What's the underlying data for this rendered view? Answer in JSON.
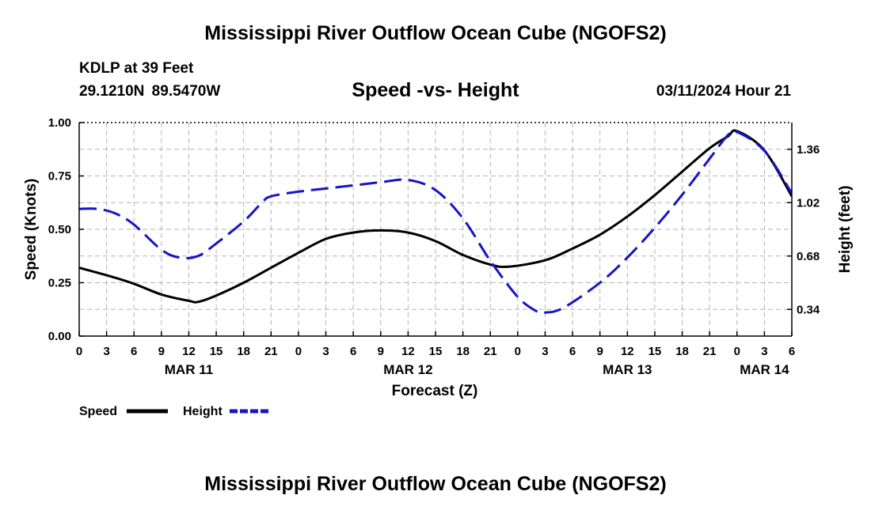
{
  "header": {
    "title": "Mississippi River Outflow Ocean Cube (NGOFS2)",
    "station": "KDLP at 39 Feet",
    "coords": "29.1210N  89.5470W",
    "subtitle": "Speed -vs- Height",
    "datetime": "03/11/2024 Hour 21"
  },
  "footer": {
    "title": "Mississippi River Outflow Ocean Cube (NGOFS2)"
  },
  "colors": {
    "speed": "#000000",
    "height": "#1515c8",
    "grid": "#b4b4b4"
  },
  "chart_data": {
    "type": "line",
    "title": "Speed -vs- Height",
    "xlabel": "Forecast (Z)",
    "ylabel": "Speed (Knots)",
    "y2label": "Height (feet)",
    "x_unit": "hours since 00Z MAR 11",
    "xlim": [
      0,
      78
    ],
    "ylim": [
      0,
      1
    ],
    "y2lim": [
      0.17,
      1.53
    ],
    "x_ticks": [
      0,
      3,
      6,
      9,
      12,
      15,
      18,
      21,
      24,
      27,
      30,
      33,
      36,
      39,
      42,
      45,
      48,
      51,
      54,
      57,
      60,
      63,
      66,
      69,
      72,
      75,
      78
    ],
    "x_tick_labels": [
      "0",
      "3",
      "6",
      "9",
      "12",
      "15",
      "18",
      "21",
      "0",
      "3",
      "6",
      "9",
      "12",
      "15",
      "18",
      "21",
      "0",
      "3",
      "6",
      "9",
      "12",
      "15",
      "18",
      "21",
      "0",
      "3",
      "6"
    ],
    "day_labels": [
      {
        "x": 12,
        "label": "MAR 11"
      },
      {
        "x": 36,
        "label": "MAR 12"
      },
      {
        "x": 60,
        "label": "MAR 13"
      },
      {
        "x": 75,
        "label": "MAR 14"
      }
    ],
    "y_ticks": [
      0,
      0.25,
      0.5,
      0.75,
      1.0
    ],
    "y_tick_labels": [
      "0.00",
      "0.25",
      "0.50",
      "0.75",
      "1.00"
    ],
    "y2_ticks": [
      0.34,
      0.68,
      1.02,
      1.36
    ],
    "y2_tick_labels": [
      "0.34",
      "0.68",
      "1.02",
      "1.36"
    ],
    "legend": "bottom-left",
    "grid": true,
    "series": [
      {
        "name": "Speed",
        "axis": "left",
        "style": "solid",
        "x": [
          0,
          3,
          6,
          9,
          12,
          13,
          15,
          18,
          21,
          24,
          27,
          30,
          33,
          36,
          39,
          42,
          45,
          47,
          51,
          54,
          57,
          60,
          63,
          66,
          69,
          71,
          72,
          75,
          78
        ],
        "y": [
          0.32,
          0.285,
          0.245,
          0.195,
          0.165,
          0.16,
          0.19,
          0.25,
          0.32,
          0.39,
          0.455,
          0.485,
          0.495,
          0.485,
          0.445,
          0.38,
          0.335,
          0.325,
          0.355,
          0.41,
          0.475,
          0.56,
          0.66,
          0.77,
          0.88,
          0.935,
          0.96,
          0.87,
          0.655
        ]
      },
      {
        "name": "Height",
        "axis": "right",
        "style": "dashed",
        "x": [
          0,
          2,
          4,
          6,
          9,
          11,
          13,
          15,
          18,
          20,
          21,
          24,
          27,
          30,
          33,
          36,
          39,
          42,
          45,
          48,
          50,
          51,
          53,
          57,
          60,
          63,
          66,
          69,
          71,
          72,
          75,
          78
        ],
        "y": [
          0.98,
          0.98,
          0.95,
          0.88,
          0.72,
          0.67,
          0.68,
          0.76,
          0.9,
          1.02,
          1.06,
          1.09,
          1.11,
          1.13,
          1.15,
          1.165,
          1.1,
          0.92,
          0.65,
          0.42,
          0.33,
          0.32,
          0.35,
          0.51,
          0.67,
          0.86,
          1.07,
          1.3,
          1.45,
          1.47,
          1.35,
          1.08
        ]
      }
    ]
  }
}
